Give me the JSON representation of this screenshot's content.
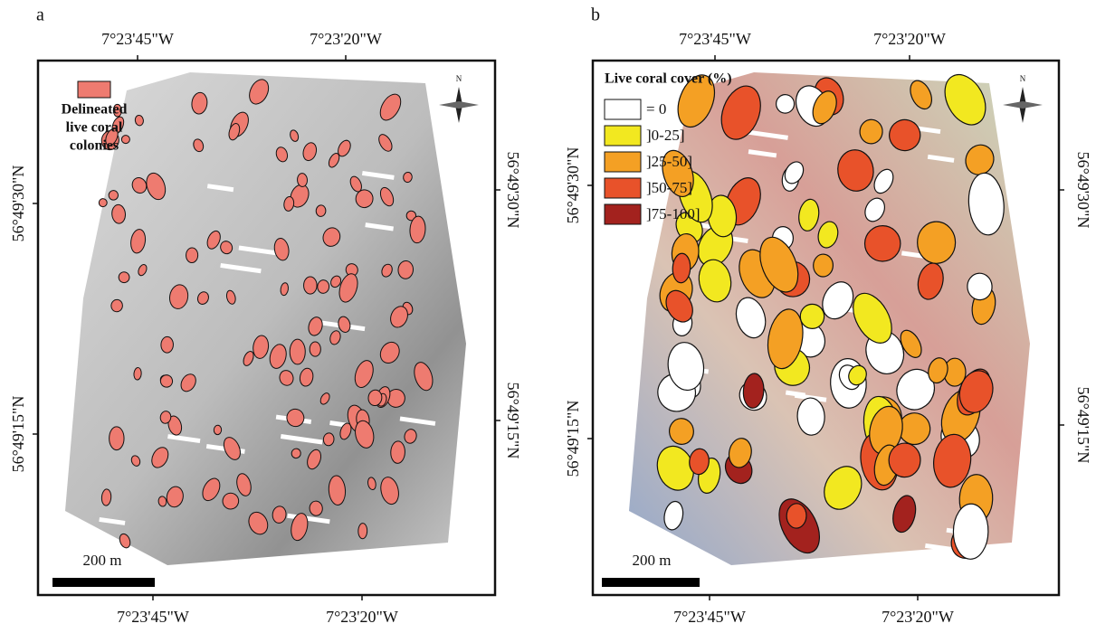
{
  "panels": [
    {
      "label": "a",
      "top_labels": [
        "7°23'45\"W",
        "7°23'20\"W"
      ],
      "bottom_labels": [
        "7°23'45\"W",
        "7°23'20\"W"
      ],
      "left_labels": [
        "56°49'30\"N",
        "56°49'15\"N"
      ],
      "right_labels": [
        "56°49'30\"N",
        "56°49'15\"N"
      ],
      "legend": {
        "lines": [
          "Delineated",
          "live coral",
          "colonies"
        ],
        "color": "#ee7b70"
      },
      "scale_bar": "200 m",
      "north": "N"
    },
    {
      "label": "b",
      "top_labels": [
        "7°23'45\"W",
        "7°23'20\"W"
      ],
      "bottom_labels": [
        "7°23'45\"W",
        "7°23'20\"W"
      ],
      "left_labels": [
        "56°49'30\"N",
        "56°49'15\"N"
      ],
      "right_labels": [
        "56°49'30\"N",
        "56°49'15\"N"
      ],
      "legend": {
        "title": "Live coral cover (%)",
        "items": [
          {
            "label": "= 0",
            "color": "#ffffff"
          },
          {
            "label": "]0-25]",
            "color": "#f2e820"
          },
          {
            "label": "]25-50]",
            "color": "#f4a024"
          },
          {
            "label": "]50-75]",
            "color": "#e8522a"
          },
          {
            "label": "]75-100]",
            "color": "#a3221e"
          }
        ]
      },
      "scale_bar": "200 m",
      "north": "N"
    }
  ]
}
